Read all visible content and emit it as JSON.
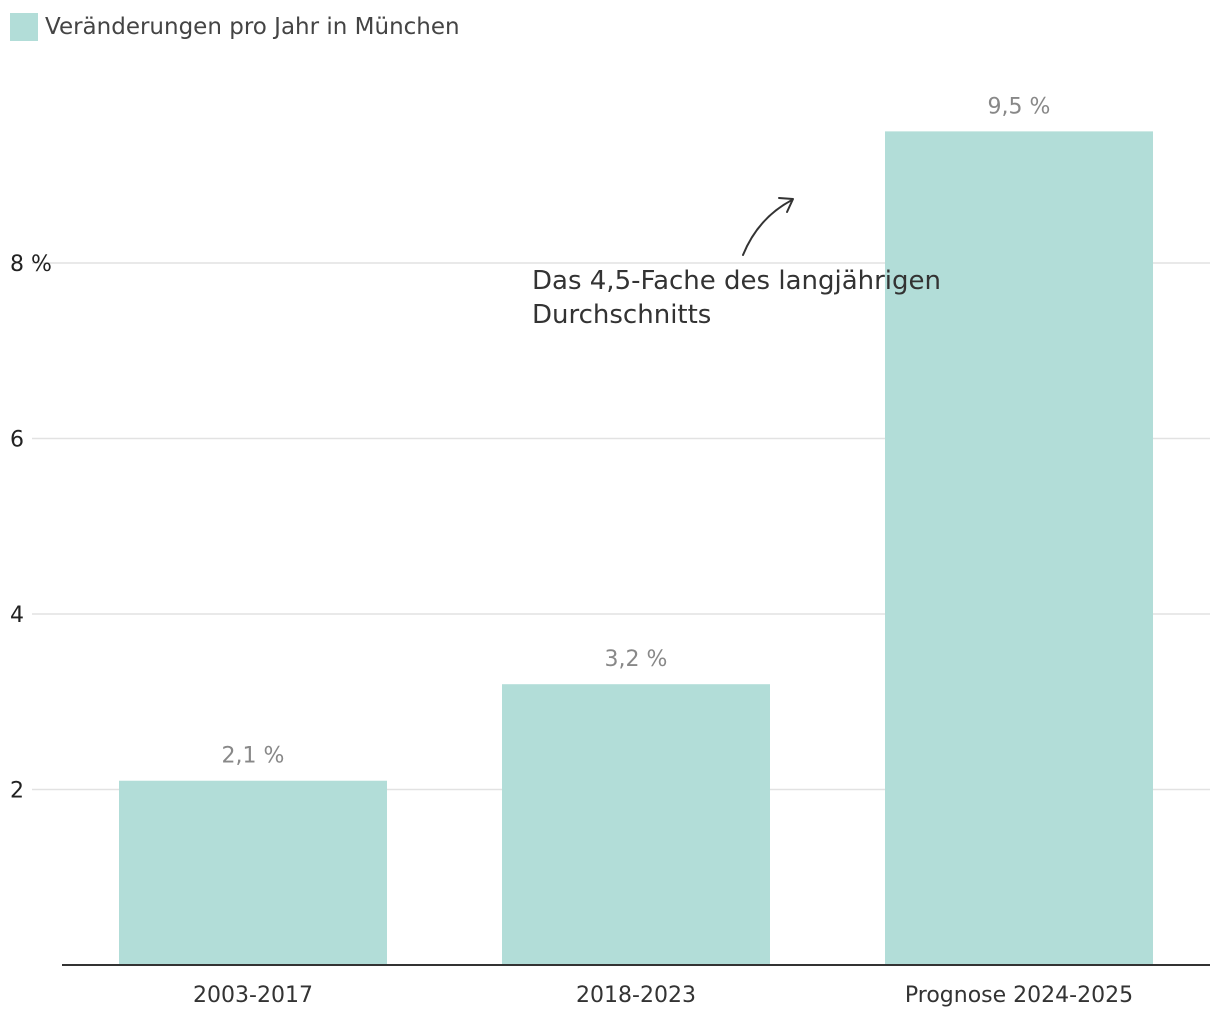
{
  "chart_data": {
    "type": "bar",
    "categories": [
      "2003-2017",
      "2018-2023",
      "Prognose 2024-2025"
    ],
    "series": [
      {
        "name": "Veränderungen pro Jahr in München",
        "values": [
          2.1,
          3.2,
          9.5
        ],
        "value_labels": [
          "2,1 %",
          "3,2 %",
          "9,5 %"
        ]
      }
    ],
    "title": "",
    "xlabel": "",
    "ylabel": "",
    "ylim": [
      0,
      10
    ],
    "yticks": [
      {
        "value": 2,
        "label": "2"
      },
      {
        "value": 4,
        "label": "4"
      },
      {
        "value": 6,
        "label": "6"
      },
      {
        "value": 8,
        "label": "8 %"
      }
    ],
    "grid": true,
    "legend": {
      "position": "top-left"
    },
    "annotation": {
      "lines": [
        "Das 4,5-Fache des langjährigen",
        "Durchschnitts"
      ],
      "points_to_category": "Prognose 2024-2025"
    },
    "colors": {
      "bar": "#b2ddd8",
      "grid": "#e2e2e2",
      "axis": "#333333"
    }
  }
}
